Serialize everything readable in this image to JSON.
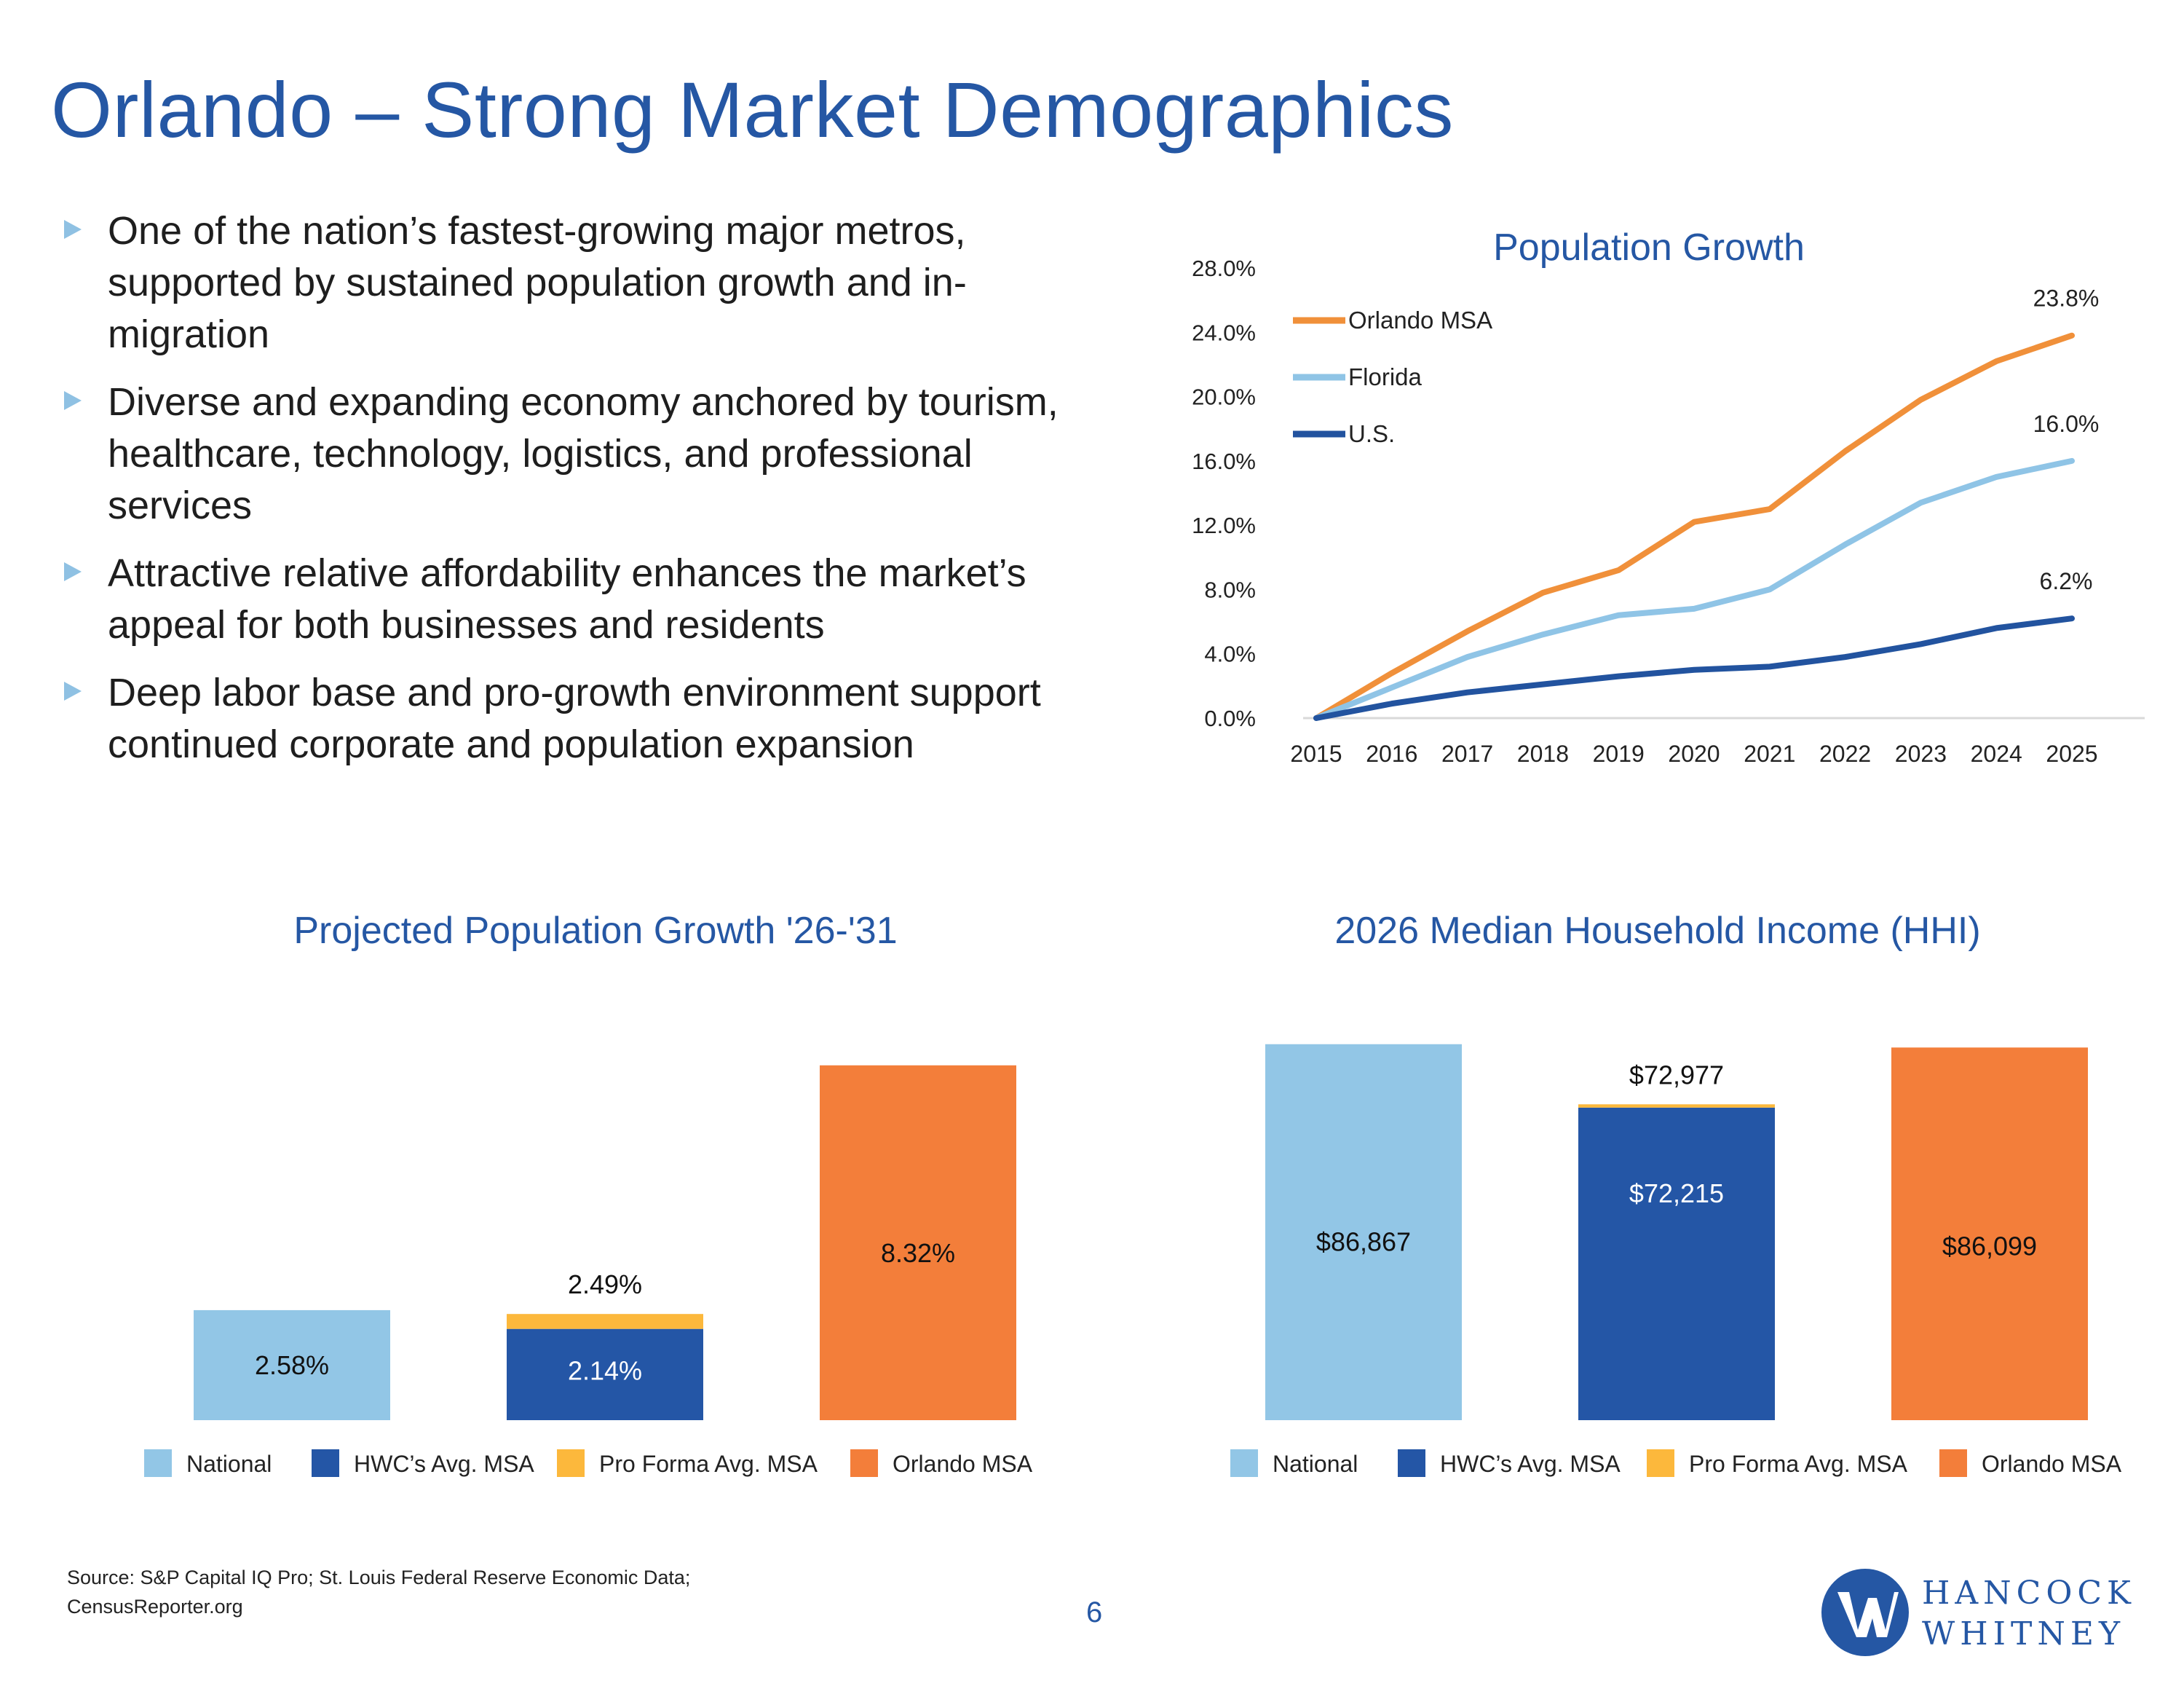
{
  "title": "Orlando – Strong Market Demographics",
  "bullets": [
    "One of the nation’s fastest-growing major metros, supported by sustained population growth and in-migration",
    "Diverse and expanding economy anchored by tourism, healthcare, technology, logistics, and professional services",
    "Attractive relative affordability enhances the market’s appeal for both businesses and residents",
    "Deep labor base and pro-growth environment support continued corporate and population expansion"
  ],
  "colors": {
    "title": "#2557a4",
    "orlando": "#f0903a",
    "florida": "#8fc4e6",
    "us": "#22539f",
    "national": "#92c6e6",
    "hwc": "#2456a6",
    "pro_forma": "#fcb83c",
    "orlando_bar": "#f37e3a"
  },
  "chart_data": [
    {
      "type": "line",
      "title": "Population Growth",
      "x": [
        "2015",
        "2016",
        "2017",
        "2018",
        "2019",
        "2020",
        "2021",
        "2022",
        "2023",
        "2024",
        "2025"
      ],
      "ylim": [
        0,
        28
      ],
      "yticks": [
        "0.0%",
        "4.0%",
        "8.0%",
        "12.0%",
        "16.0%",
        "20.0%",
        "24.0%",
        "28.0%"
      ],
      "legend_position": "top-left",
      "series": [
        {
          "name": "Orlando MSA",
          "values": [
            0,
            2.8,
            5.4,
            7.8,
            9.2,
            12.2,
            13.0,
            16.6,
            19.8,
            22.2,
            23.8
          ],
          "end_label": "23.8%"
        },
        {
          "name": "Florida",
          "values": [
            0,
            1.9,
            3.8,
            5.2,
            6.4,
            6.8,
            8.0,
            10.8,
            13.4,
            15.0,
            16.0
          ],
          "end_label": "16.0%"
        },
        {
          "name": "U.S.",
          "values": [
            0,
            0.9,
            1.6,
            2.1,
            2.6,
            3.0,
            3.2,
            3.8,
            4.6,
            5.6,
            6.2
          ],
          "end_label": "6.2%"
        }
      ]
    },
    {
      "type": "bar",
      "title": "Projected Population Growth '26-'31",
      "categories": [
        "National",
        "HWC’s Avg. MSA",
        "Orlando MSA"
      ],
      "stacked": true,
      "ylim": [
        0,
        9
      ],
      "series": [
        {
          "name": "National",
          "values": [
            2.58,
            null,
            null
          ],
          "labels": [
            "2.58%",
            "",
            ""
          ]
        },
        {
          "name": "HWC’s Avg. MSA",
          "values": [
            null,
            2.14,
            null
          ],
          "labels": [
            "",
            "2.14%",
            ""
          ]
        },
        {
          "name": "Pro Forma Avg. MSA",
          "values": [
            null,
            0.35,
            null
          ],
          "total_labels": [
            "",
            "2.49%",
            ""
          ]
        },
        {
          "name": "Orlando MSA",
          "values": [
            null,
            null,
            8.32
          ],
          "labels": [
            "",
            "",
            "8.32%"
          ]
        }
      ]
    },
    {
      "type": "bar",
      "title": "2026 Median Household Income (HHI)",
      "categories": [
        "National",
        "HWC’s Avg. MSA",
        "Orlando MSA"
      ],
      "stacked": true,
      "ylim": [
        0,
        88000
      ],
      "series": [
        {
          "name": "National",
          "values": [
            86867,
            null,
            null
          ],
          "labels": [
            "$86,867",
            "",
            ""
          ]
        },
        {
          "name": "HWC’s Avg. MSA",
          "values": [
            null,
            72215,
            null
          ],
          "labels": [
            "",
            "$72,215",
            ""
          ]
        },
        {
          "name": "Pro Forma Avg. MSA",
          "values": [
            null,
            762,
            null
          ],
          "total_labels": [
            "",
            "$72,977",
            ""
          ]
        },
        {
          "name": "Orlando MSA",
          "values": [
            null,
            null,
            86099
          ],
          "labels": [
            "",
            "",
            "$86,099"
          ]
        }
      ]
    }
  ],
  "footer": {
    "source_line1": "Source: S&P Capital IQ Pro; St. Louis Federal Reserve Economic Data;",
    "source_line2": "CensusReporter.org",
    "page_number": "6",
    "logo_line1": "HANCOCK",
    "logo_line2": "WHITNEY"
  }
}
